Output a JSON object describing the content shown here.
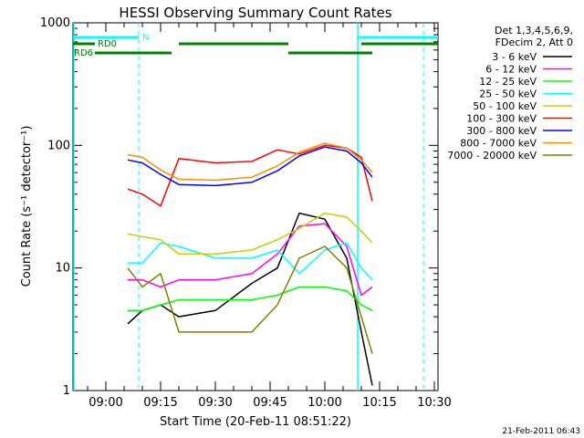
{
  "chart_data": {
    "type": "line",
    "title": "HESSI Observing Summary Count Rates",
    "xlabel": "Start Time (20-Feb-11 08:51:22)",
    "ylabel": "Count Rate (s⁻¹ detector⁻¹)",
    "y_scale": "log",
    "ylim": [
      1,
      1000
    ],
    "xlim": [
      "08:51",
      "10:31"
    ],
    "x_ticks": [
      "09:00",
      "09:15",
      "09:30",
      "09:45",
      "10:00",
      "10:15",
      "10:30"
    ],
    "y_ticks": [
      "1",
      "10",
      "100",
      "1000"
    ],
    "timestamp": "21-Feb-2011 06:43",
    "legend_header": [
      "Det 1,3,4,5,6,9,",
      "FDecim 2, Att 0"
    ],
    "legend_placement": "right",
    "attenuator_labels": {
      "rd0": "RD0",
      "rd6": "RD6",
      "night": "N"
    },
    "colors": {
      "axes": "#000000",
      "night_band": "#00ffff",
      "saa_band": "#008000"
    },
    "series": [
      {
        "name": "3 - 6 keV",
        "color": "#000000",
        "x": [
          "09:06",
          "09:10",
          "09:15",
          "09:20",
          "09:30",
          "09:40",
          "09:47",
          "09:53",
          "10:00",
          "10:06",
          "10:10",
          "10:13"
        ],
        "values": [
          3.5,
          4.5,
          5.0,
          4.0,
          4.5,
          7.5,
          10,
          28,
          25,
          12,
          3,
          1.1
        ]
      },
      {
        "name": "6 - 12 keV",
        "color": "#ff00ff",
        "x": [
          "09:06",
          "09:10",
          "09:15",
          "09:20",
          "09:30",
          "09:40",
          "09:47",
          "09:53",
          "10:00",
          "10:06",
          "10:10",
          "10:13"
        ],
        "values": [
          8,
          8,
          7,
          8,
          8,
          9,
          13,
          22,
          23,
          15,
          6,
          7
        ]
      },
      {
        "name": "12 - 25 keV",
        "color": "#00ff00",
        "x": [
          "09:06",
          "09:10",
          "09:15",
          "09:20",
          "09:30",
          "09:40",
          "09:47",
          "09:53",
          "10:00",
          "10:06",
          "10:10",
          "10:13"
        ],
        "values": [
          4.5,
          4.5,
          5.0,
          5.5,
          5.5,
          5.5,
          6,
          7,
          7,
          6.5,
          5,
          4.5
        ]
      },
      {
        "name": "25 - 50 keV",
        "color": "#00ffff",
        "x": [
          "09:06",
          "09:10",
          "09:15",
          "09:20",
          "09:30",
          "09:40",
          "09:47",
          "09:53",
          "10:00",
          "10:06",
          "10:10",
          "10:13"
        ],
        "values": [
          11,
          11,
          16,
          15,
          12,
          12,
          14,
          9,
          14,
          16,
          10,
          8
        ]
      },
      {
        "name": "50 - 100 keV",
        "color": "#cccc00",
        "x": [
          "09:06",
          "09:10",
          "09:15",
          "09:20",
          "09:30",
          "09:40",
          "09:47",
          "09:53",
          "10:00",
          "10:06",
          "10:10",
          "10:13"
        ],
        "values": [
          19,
          18,
          17,
          13,
          13,
          14,
          17,
          21,
          28,
          26,
          20,
          16
        ]
      },
      {
        "name": "100 - 300 keV",
        "color": "#ff0000",
        "x": [
          "09:06",
          "09:10",
          "09:15",
          "09:20",
          "09:30",
          "09:40",
          "09:47",
          "09:53",
          "10:00",
          "10:06",
          "10:10",
          "10:13"
        ],
        "values": [
          44,
          40,
          32,
          78,
          72,
          74,
          92,
          85,
          100,
          95,
          80,
          35
        ]
      },
      {
        "name": "300 - 800 keV",
        "color": "#0000ff",
        "x": [
          "09:06",
          "09:10",
          "09:15",
          "09:20",
          "09:30",
          "09:40",
          "09:47",
          "09:53",
          "10:00",
          "10:06",
          "10:10",
          "10:13"
        ],
        "values": [
          76,
          72,
          58,
          48,
          47,
          50,
          62,
          82,
          97,
          90,
          72,
          55
        ]
      },
      {
        "name": "800 - 7000 keV",
        "color": "#ff8c00",
        "x": [
          "09:06",
          "09:10",
          "09:15",
          "09:20",
          "09:30",
          "09:40",
          "09:47",
          "09:53",
          "10:00",
          "10:06",
          "10:10",
          "10:13"
        ],
        "values": [
          84,
          80,
          63,
          53,
          52,
          55,
          68,
          88,
          104,
          95,
          76,
          60
        ]
      },
      {
        "name": "7000 - 20000 keV",
        "color": "#808000",
        "x": [
          "09:06",
          "09:10",
          "09:15",
          "09:20",
          "09:30",
          "09:40",
          "09:47",
          "09:53",
          "10:00",
          "10:06",
          "10:10",
          "10:13"
        ],
        "values": [
          10,
          7,
          9,
          3,
          3,
          3,
          5,
          12,
          15,
          10,
          4,
          2
        ]
      }
    ]
  }
}
